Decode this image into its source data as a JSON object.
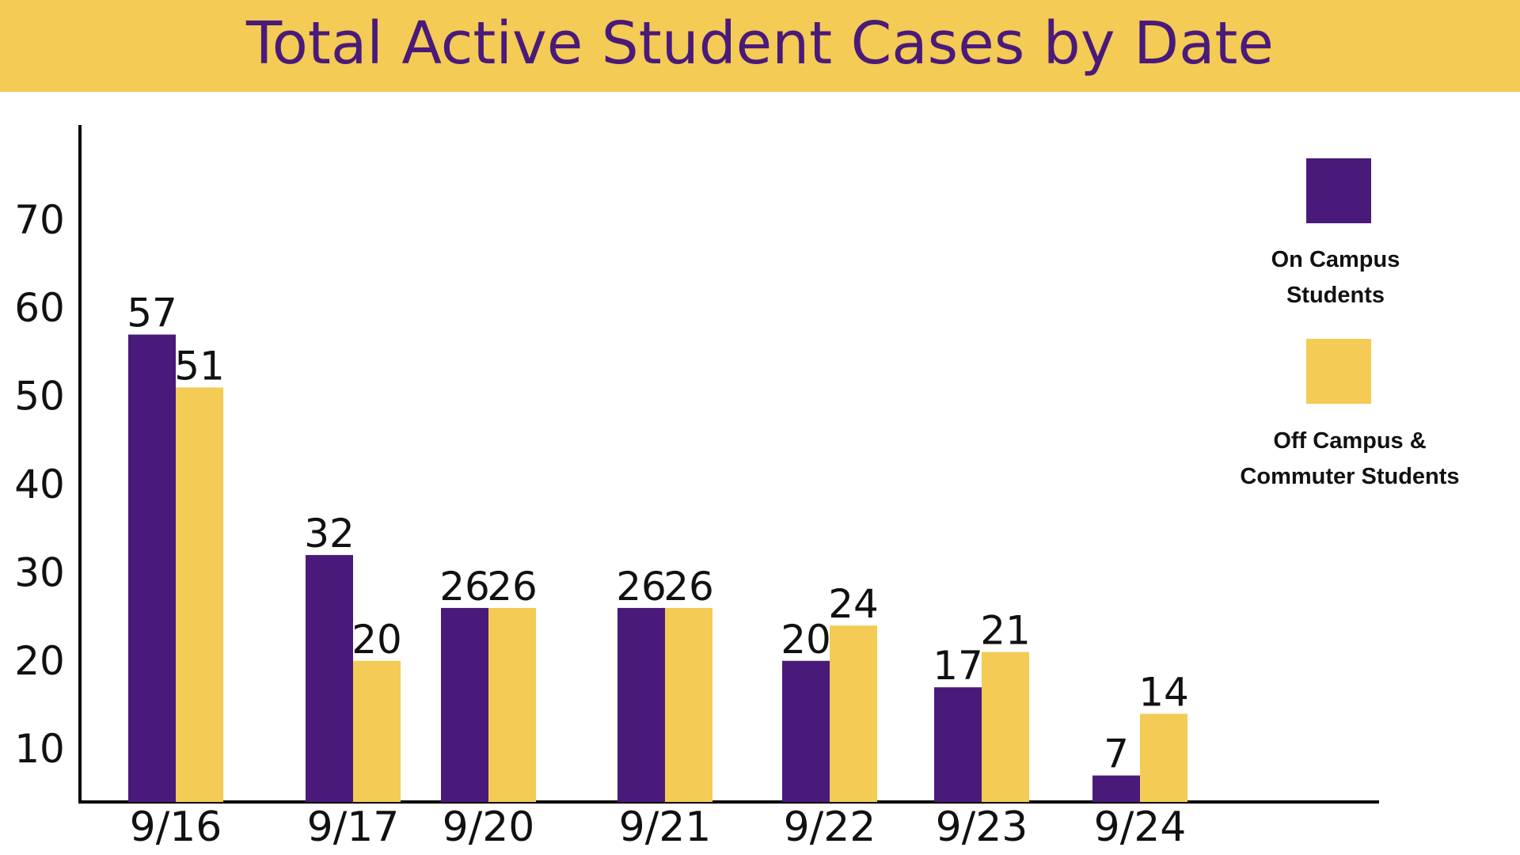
{
  "chart_data": {
    "type": "bar",
    "title": "Total Active Student Cases by Date",
    "categories": [
      "9/16",
      "9/17",
      "9/20",
      "9/21",
      "9/22",
      "9/23",
      "9/24"
    ],
    "series": [
      {
        "name": "On Campus Students",
        "legend_lines": [
          "On Campus",
          "Students"
        ],
        "color": "#4A1A7A",
        "values": [
          57,
          32,
          26,
          26,
          20,
          17,
          7
        ]
      },
      {
        "name": "Off Campus & Commuter Students",
        "legend_lines": [
          "Off Campus &",
          "Commuter Students"
        ],
        "color": "#F3CB55",
        "values": [
          51,
          20,
          26,
          26,
          24,
          21,
          14
        ]
      }
    ],
    "yticks": [
      10,
      20,
      30,
      40,
      50,
      60,
      70
    ],
    "ylim": [
      4,
      80
    ],
    "xlabel": "",
    "ylabel": "",
    "grid": false,
    "legend_position": "right"
  },
  "colors": {
    "banner": "#F3CB55",
    "title": "#4A1A7A",
    "axis": "#000000"
  }
}
